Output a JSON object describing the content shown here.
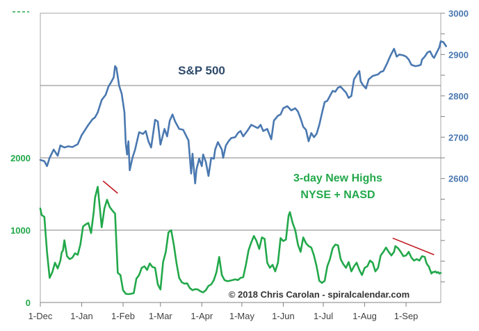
{
  "chart_data": {
    "type": "line",
    "title": "",
    "copyright": "© 2018 Chris Carolan - spiralcalendar.com",
    "x_tick_labels": [
      "1-Dec",
      "1-Jan",
      "1-Feb",
      "1-Mar",
      "1-Apr",
      "1-May",
      "1-Jun",
      "1-Jul",
      "1-Aug",
      "1-Sep"
    ],
    "x_tick_days": [
      0,
      31,
      62,
      90,
      121,
      151,
      182,
      212,
      243,
      274
    ],
    "x_range_days": [
      0,
      300
    ],
    "left_axis": {
      "ticks": [
        "0",
        "1000",
        "2000"
      ],
      "tick_values": [
        0,
        1000,
        2000
      ],
      "range": [
        0,
        4000
      ],
      "color": "#22a84a"
    },
    "right_axis": {
      "ticks": [
        "2600",
        "2700",
        "2800",
        "2900",
        "3000"
      ],
      "tick_values": [
        2600,
        2700,
        2800,
        2900,
        3000
      ],
      "range": [
        2300,
        3000
      ],
      "color": "#4a78b0"
    },
    "series": [
      {
        "name": "S&P 500",
        "axis": "right",
        "color": "#4a78b0",
        "points": [
          [
            0,
            2645
          ],
          [
            3,
            2642
          ],
          [
            5,
            2630
          ],
          [
            7,
            2650
          ],
          [
            10,
            2670
          ],
          [
            13,
            2655
          ],
          [
            15,
            2680
          ],
          [
            18,
            2675
          ],
          [
            21,
            2678
          ],
          [
            24,
            2676
          ],
          [
            28,
            2683
          ],
          [
            31,
            2705
          ],
          [
            34,
            2720
          ],
          [
            36,
            2730
          ],
          [
            39,
            2743
          ],
          [
            41,
            2748
          ],
          [
            43,
            2760
          ],
          [
            46,
            2790
          ],
          [
            49,
            2803
          ],
          [
            51,
            2822
          ],
          [
            53,
            2833
          ],
          [
            55,
            2845
          ],
          [
            56,
            2872
          ],
          [
            57,
            2868
          ],
          [
            59,
            2825
          ],
          [
            61,
            2805
          ],
          [
            63,
            2760
          ],
          [
            64,
            2685
          ],
          [
            65,
            2658
          ],
          [
            66,
            2690
          ],
          [
            67,
            2620
          ],
          [
            69,
            2650
          ],
          [
            71,
            2670
          ],
          [
            74,
            2712
          ],
          [
            77,
            2708
          ],
          [
            79,
            2715
          ],
          [
            81,
            2690
          ],
          [
            83,
            2675
          ],
          [
            86,
            2742
          ],
          [
            88,
            2738
          ],
          [
            90,
            2682
          ],
          [
            93,
            2720
          ],
          [
            95,
            2702
          ],
          [
            97,
            2740
          ],
          [
            99,
            2755
          ],
          [
            101,
            2738
          ],
          [
            104,
            2720
          ],
          [
            107,
            2718
          ],
          [
            111,
            2692
          ],
          [
            113,
            2612
          ],
          [
            114,
            2660
          ],
          [
            116,
            2588
          ],
          [
            117,
            2622
          ],
          [
            119,
            2648
          ],
          [
            121,
            2630
          ],
          [
            122,
            2658
          ],
          [
            124,
            2640
          ],
          [
            126,
            2606
          ],
          [
            128,
            2650
          ],
          [
            130,
            2648
          ],
          [
            131,
            2670
          ],
          [
            133,
            2688
          ],
          [
            136,
            2670
          ],
          [
            137,
            2650
          ],
          [
            139,
            2680
          ],
          [
            141,
            2690
          ],
          [
            143,
            2698
          ],
          [
            146,
            2700
          ],
          [
            148,
            2710
          ],
          [
            150,
            2715
          ],
          [
            152,
            2702
          ],
          [
            155,
            2715
          ],
          [
            158,
            2730
          ],
          [
            161,
            2725
          ],
          [
            163,
            2722
          ],
          [
            165,
            2730
          ],
          [
            167,
            2715
          ],
          [
            170,
            2720
          ],
          [
            173,
            2695
          ],
          [
            175,
            2740
          ],
          [
            178,
            2752
          ],
          [
            180,
            2755
          ],
          [
            182,
            2770
          ],
          [
            185,
            2775
          ],
          [
            188,
            2765
          ],
          [
            191,
            2770
          ],
          [
            193,
            2762
          ],
          [
            195,
            2745
          ],
          [
            197,
            2725
          ],
          [
            199,
            2718
          ],
          [
            201,
            2690
          ],
          [
            203,
            2710
          ],
          [
            205,
            2700
          ],
          [
            207,
            2708
          ],
          [
            209,
            2730
          ],
          [
            211,
            2758
          ],
          [
            213,
            2785
          ],
          [
            215,
            2788
          ],
          [
            217,
            2800
          ],
          [
            219,
            2812
          ],
          [
            221,
            2810
          ],
          [
            223,
            2820
          ],
          [
            225,
            2822
          ],
          [
            227,
            2815
          ],
          [
            229,
            2808
          ],
          [
            231,
            2795
          ],
          [
            233,
            2800
          ],
          [
            235,
            2840
          ],
          [
            237,
            2850
          ],
          [
            239,
            2860
          ],
          [
            240,
            2835
          ],
          [
            242,
            2825
          ],
          [
            244,
            2818
          ],
          [
            246,
            2840
          ],
          [
            249,
            2848
          ],
          [
            251,
            2850
          ],
          [
            253,
            2852
          ],
          [
            255,
            2858
          ],
          [
            257,
            2860
          ],
          [
            260,
            2880
          ],
          [
            262,
            2895
          ],
          [
            264,
            2908
          ],
          [
            265,
            2914
          ],
          [
            267,
            2895
          ],
          [
            269,
            2900
          ],
          [
            272,
            2898
          ],
          [
            274,
            2895
          ],
          [
            276,
            2888
          ],
          [
            278,
            2875
          ],
          [
            281,
            2872
          ],
          [
            283,
            2873
          ],
          [
            285,
            2875
          ],
          [
            286,
            2888
          ],
          [
            288,
            2895
          ],
          [
            290,
            2905
          ],
          [
            292,
            2908
          ],
          [
            294,
            2895
          ],
          [
            295,
            2892
          ],
          [
            297,
            2905
          ],
          [
            299,
            2918
          ],
          [
            300,
            2932
          ],
          [
            302,
            2930
          ],
          [
            304,
            2920
          ]
        ]
      },
      {
        "name": "3-day New Highs NYSE + NASD",
        "axis": "left",
        "color": "#22a84a",
        "points": [
          [
            0,
            1300
          ],
          [
            1,
            1210
          ],
          [
            3,
            1185
          ],
          [
            5,
            700
          ],
          [
            7,
            340
          ],
          [
            9,
            420
          ],
          [
            11,
            550
          ],
          [
            13,
            470
          ],
          [
            15,
            575
          ],
          [
            16,
            690
          ],
          [
            17,
            720
          ],
          [
            18,
            860
          ],
          [
            20,
            640
          ],
          [
            22,
            600
          ],
          [
            24,
            620
          ],
          [
            26,
            680
          ],
          [
            28,
            660
          ],
          [
            30,
            800
          ],
          [
            32,
            1050
          ],
          [
            34,
            1080
          ],
          [
            36,
            1100
          ],
          [
            38,
            960
          ],
          [
            40,
            1250
          ],
          [
            41,
            1450
          ],
          [
            43,
            1600
          ],
          [
            45,
            1230
          ],
          [
            46,
            1040
          ],
          [
            48,
            1300
          ],
          [
            50,
            1420
          ],
          [
            52,
            1320
          ],
          [
            54,
            1270
          ],
          [
            56,
            1230
          ],
          [
            58,
            410
          ],
          [
            60,
            380
          ],
          [
            62,
            170
          ],
          [
            64,
            120
          ],
          [
            66,
            115
          ],
          [
            68,
            120
          ],
          [
            70,
            130
          ],
          [
            72,
            330
          ],
          [
            74,
            380
          ],
          [
            76,
            480
          ],
          [
            78,
            500
          ],
          [
            80,
            450
          ],
          [
            82,
            540
          ],
          [
            84,
            490
          ],
          [
            86,
            480
          ],
          [
            88,
            250
          ],
          [
            90,
            180
          ],
          [
            92,
            560
          ],
          [
            94,
            700
          ],
          [
            96,
            970
          ],
          [
            98,
            1000
          ],
          [
            100,
            800
          ],
          [
            102,
            550
          ],
          [
            104,
            340
          ],
          [
            106,
            280
          ],
          [
            108,
            260
          ],
          [
            110,
            265
          ],
          [
            112,
            200
          ],
          [
            114,
            170
          ],
          [
            116,
            185
          ],
          [
            118,
            180
          ],
          [
            120,
            155
          ],
          [
            122,
            140
          ],
          [
            124,
            170
          ],
          [
            126,
            230
          ],
          [
            128,
            250
          ],
          [
            130,
            310
          ],
          [
            132,
            420
          ],
          [
            134,
            630
          ],
          [
            136,
            380
          ],
          [
            138,
            310
          ],
          [
            140,
            295
          ],
          [
            142,
            300
          ],
          [
            144,
            310
          ],
          [
            146,
            320
          ],
          [
            148,
            310
          ],
          [
            150,
            340
          ],
          [
            152,
            350
          ],
          [
            154,
            520
          ],
          [
            156,
            720
          ],
          [
            158,
            830
          ],
          [
            160,
            920
          ],
          [
            162,
            850
          ],
          [
            164,
            740
          ],
          [
            166,
            900
          ],
          [
            168,
            880
          ],
          [
            170,
            550
          ],
          [
            172,
            480
          ],
          [
            174,
            520
          ],
          [
            176,
            430
          ],
          [
            178,
            550
          ],
          [
            180,
            890
          ],
          [
            182,
            850
          ],
          [
            184,
            870
          ],
          [
            186,
            1200
          ],
          [
            187,
            1250
          ],
          [
            189,
            1100
          ],
          [
            191,
            1000
          ],
          [
            193,
            800
          ],
          [
            195,
            700
          ],
          [
            197,
            900
          ],
          [
            199,
            820
          ],
          [
            201,
            780
          ],
          [
            203,
            760
          ],
          [
            205,
            650
          ],
          [
            207,
            500
          ],
          [
            209,
            300
          ],
          [
            211,
            270
          ],
          [
            213,
            300
          ],
          [
            215,
            500
          ],
          [
            217,
            600
          ],
          [
            219,
            750
          ],
          [
            221,
            800
          ],
          [
            223,
            790
          ],
          [
            225,
            600
          ],
          [
            227,
            530
          ],
          [
            229,
            480
          ],
          [
            231,
            560
          ],
          [
            233,
            430
          ],
          [
            235,
            500
          ],
          [
            237,
            550
          ],
          [
            239,
            450
          ],
          [
            241,
            380
          ],
          [
            243,
            480
          ],
          [
            245,
            500
          ],
          [
            247,
            580
          ],
          [
            249,
            550
          ],
          [
            251,
            430
          ],
          [
            253,
            480
          ],
          [
            255,
            650
          ],
          [
            257,
            700
          ],
          [
            259,
            760
          ],
          [
            261,
            700
          ],
          [
            263,
            650
          ],
          [
            265,
            700
          ],
          [
            266,
            780
          ],
          [
            268,
            750
          ],
          [
            270,
            700
          ],
          [
            272,
            640
          ],
          [
            274,
            650
          ],
          [
            276,
            700
          ],
          [
            278,
            620
          ],
          [
            280,
            580
          ],
          [
            282,
            600
          ],
          [
            284,
            580
          ],
          [
            286,
            640
          ],
          [
            288,
            630
          ],
          [
            289,
            560
          ],
          [
            290,
            520
          ],
          [
            291,
            500
          ],
          [
            292,
            450
          ],
          [
            293,
            400
          ],
          [
            294,
            420
          ],
          [
            295,
            420
          ],
          [
            296,
            430
          ],
          [
            297,
            410
          ],
          [
            298,
            420
          ],
          [
            299,
            400
          ],
          [
            300,
            410
          ]
        ]
      }
    ],
    "annotations": [
      {
        "type": "divergence-line",
        "color": "#c0191e",
        "from": [
          47,
          1680
        ],
        "to": [
          58,
          1510
        ],
        "axis": "left"
      },
      {
        "type": "divergence-line",
        "color": "#c0191e",
        "from": [
          264,
          890
        ],
        "to": [
          295,
          660
        ],
        "axis": "left"
      },
      {
        "type": "text",
        "text": "S&P 500",
        "color": "#2e4a6b"
      },
      {
        "type": "text",
        "lines": [
          "3-day New Highs",
          "NYSE + NASD"
        ],
        "color": "#22a84a"
      }
    ]
  }
}
